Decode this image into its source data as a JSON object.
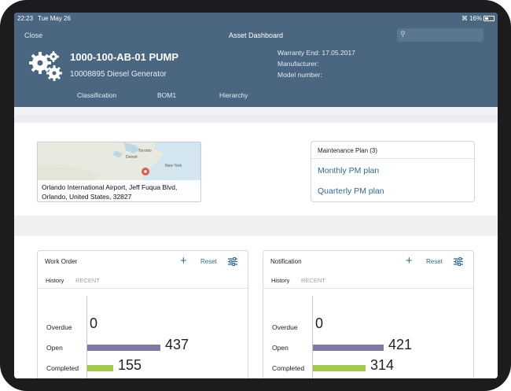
{
  "status_bar": {
    "time": "22:23",
    "date": "Tue May 26",
    "battery": "16%"
  },
  "header": {
    "close_label": "Close",
    "title": "Asset Dashboard",
    "asset_name": "1000-100-AB-01 PUMP",
    "asset_description": "10008895 Diesel Generator",
    "warranty": "Warranty End: 17.05.2017",
    "manufacturer": "Manufacturer:",
    "model_number": "Model number:",
    "tabs": [
      "Classification",
      "BOM1",
      "Hierarchy"
    ]
  },
  "map": {
    "labels": [
      "Toronto",
      "Detroit",
      "New York"
    ],
    "address_line1": "Orlando International Airport, Jeff Fuqua Blvd,",
    "address_line2": "Orlando, United States, 32827"
  },
  "maintenance_plan": {
    "title": "Maintenance Plan (3)",
    "links": [
      "Monthly PM plan",
      "Quarterly PM plan"
    ]
  },
  "cards": [
    {
      "title": "Work Order",
      "reset_label": "Reset",
      "tabs": [
        "History",
        "RECENT"
      ],
      "chart_data": {
        "type": "bar",
        "categories": [
          "Overdue",
          "Open",
          "Completed"
        ],
        "values": [
          0,
          437,
          155
        ],
        "xlim": [
          0,
          500
        ],
        "colors": [
          "#8a8ab0",
          "#7e7aa6",
          "#a3c94a"
        ]
      }
    },
    {
      "title": "Notification",
      "reset_label": "Reset",
      "tabs": [
        "History",
        "RECENT"
      ],
      "chart_data": {
        "type": "bar",
        "categories": [
          "Overdue",
          "Open",
          "Completed"
        ],
        "values": [
          0,
          421,
          314
        ],
        "xlim": [
          0,
          500
        ],
        "colors": [
          "#8a8ab0",
          "#7e7aa6",
          "#a3c94a"
        ]
      }
    }
  ],
  "colors": {
    "header": "#4a6680",
    "accent": "#2d6b9c"
  }
}
